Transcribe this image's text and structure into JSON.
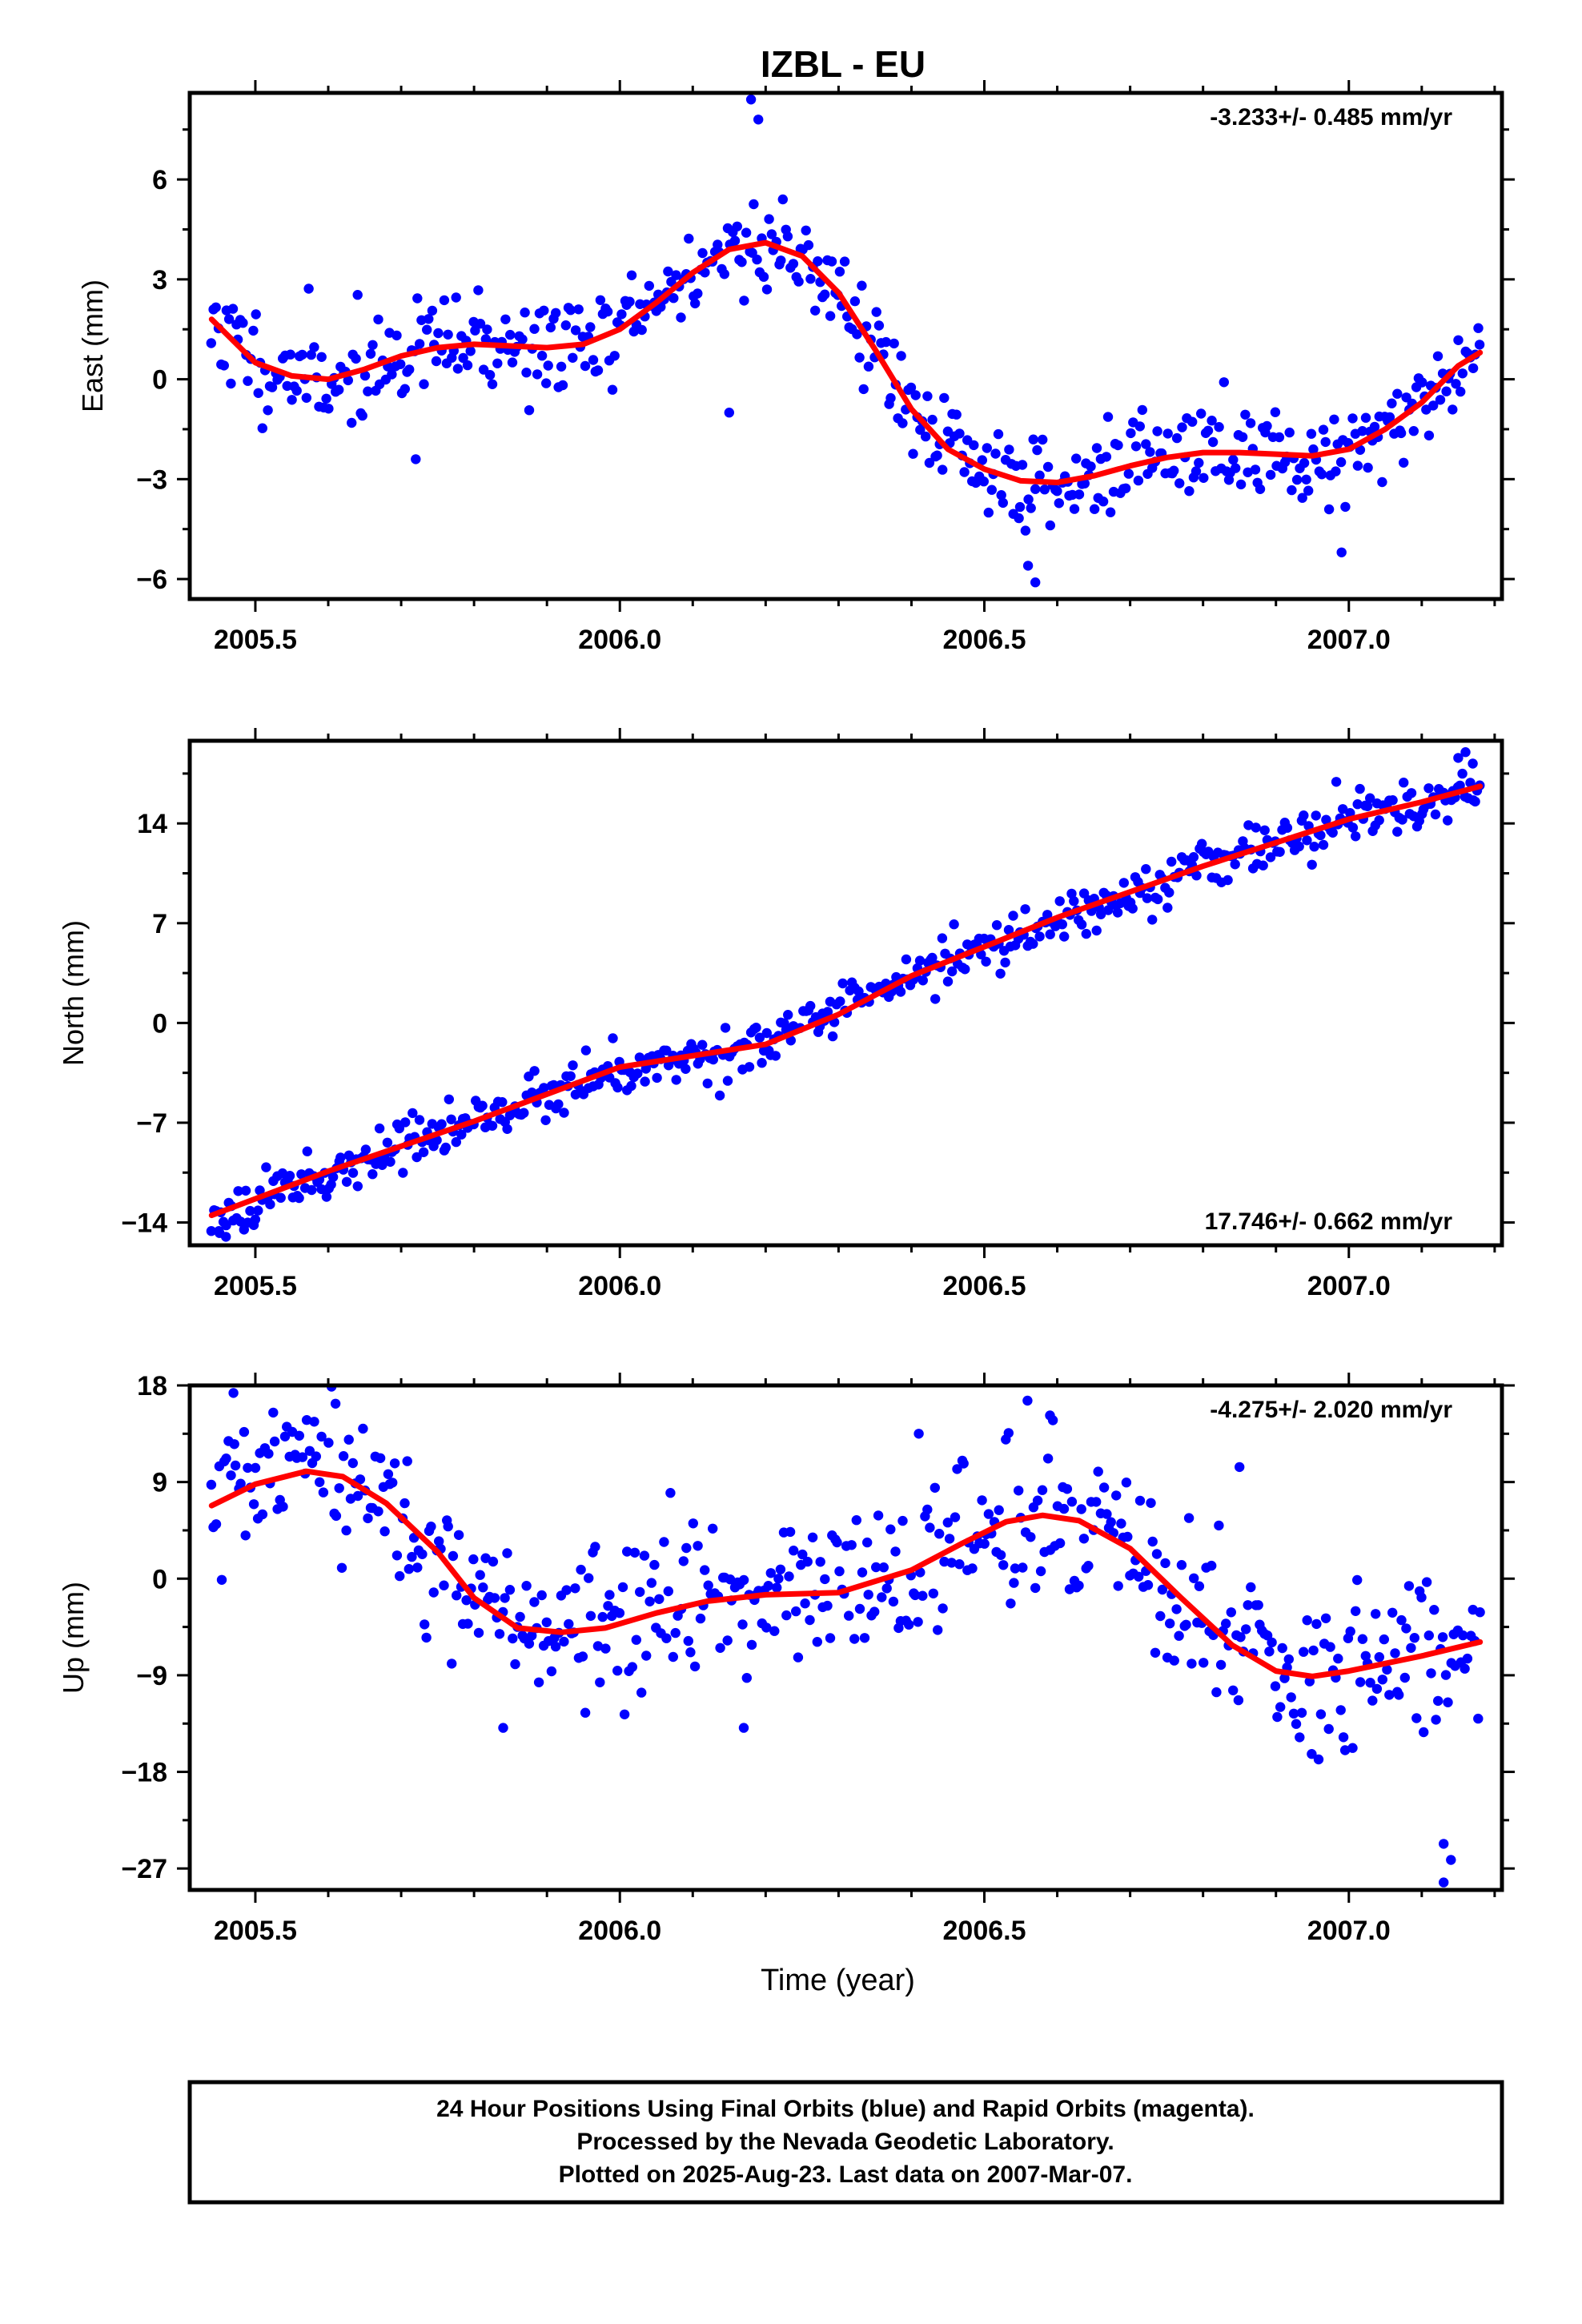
{
  "title": "IZBL - EU",
  "footer": {
    "line1": "24 Hour Positions Using Final Orbits (blue) and Rapid Orbits (magenta).",
    "line2": "Processed by the Nevada Geodetic Laboratory.",
    "line3": "Plotted on 2025-Aug-23. Last data on 2007-Mar-07."
  },
  "colors": {
    "points": "#0000ff",
    "fit": "#ff0000",
    "frame": "#000000"
  },
  "chart_data": [
    {
      "type": "scatter",
      "ylabel": "East (mm)",
      "xlabel": "",
      "rate_label": "-3.233+/- 0.485 mm/yr",
      "rate_position": "top-right",
      "xlim": [
        2005.41,
        2007.21
      ],
      "ylim": [
        -6.6,
        8.6
      ],
      "xticks": [
        2005.5,
        2006.0,
        2006.5,
        2007.0
      ],
      "xtick_labels": [
        "2005.5",
        "2006.0",
        "2006.5",
        "2007.0"
      ],
      "yticks": [
        -6,
        -3,
        0,
        3,
        6
      ],
      "ytick_labels": [
        "−6",
        "−3",
        "0",
        "3",
        "6"
      ],
      "trend": {
        "x": [
          2005.44,
          2005.5,
          2005.55,
          2005.6,
          2005.65,
          2005.7,
          2005.75,
          2005.8,
          2005.85,
          2005.9,
          2005.95,
          2006.0,
          2006.05,
          2006.1,
          2006.15,
          2006.2,
          2006.25,
          2006.3,
          2006.35,
          2006.4,
          2006.45,
          2006.5,
          2006.55,
          2006.6,
          2006.65,
          2006.7,
          2006.75,
          2006.8,
          2006.85,
          2006.9,
          2006.95,
          2007.0,
          2007.05,
          2007.1,
          2007.15,
          2007.18
        ],
        "y": [
          1.8,
          0.5,
          0.1,
          0.0,
          0.3,
          0.7,
          0.95,
          1.05,
          1.0,
          0.95,
          1.05,
          1.5,
          2.3,
          3.2,
          3.9,
          4.1,
          3.7,
          2.6,
          0.9,
          -0.9,
          -2.1,
          -2.7,
          -3.05,
          -3.1,
          -2.9,
          -2.6,
          -2.35,
          -2.2,
          -2.2,
          -2.25,
          -2.3,
          -2.1,
          -1.5,
          -0.7,
          0.4,
          0.8
        ]
      },
      "points_model": {
        "n": 520,
        "x_start": 2005.44,
        "x_end": 2007.18,
        "seed": 11,
        "scatter_sigma": 0.75,
        "outliers": [
          [
            2006.18,
            8.4
          ],
          [
            2006.19,
            7.8
          ],
          [
            2006.15,
            -1.0
          ],
          [
            2006.57,
            -6.1
          ],
          [
            2006.56,
            -5.6
          ],
          [
            2006.99,
            -5.2
          ],
          [
            2005.72,
            -2.4
          ]
        ]
      }
    },
    {
      "type": "scatter",
      "ylabel": "North (mm)",
      "xlabel": "",
      "rate_label": "17.746+/- 0.662 mm/yr",
      "rate_position": "bottom-right",
      "xlim": [
        2005.41,
        2007.21
      ],
      "ylim": [
        -15.6,
        19.8
      ],
      "xticks": [
        2005.5,
        2006.0,
        2006.5,
        2007.0
      ],
      "xtick_labels": [
        "2005.5",
        "2006.0",
        "2006.5",
        "2007.0"
      ],
      "yticks": [
        -14,
        -7,
        0,
        7,
        14
      ],
      "ytick_labels": [
        "−14",
        "−7",
        "0",
        "7",
        "14"
      ],
      "trend": {
        "x": [
          2005.44,
          2005.6,
          2005.8,
          2006.0,
          2006.2,
          2006.3,
          2006.4,
          2006.6,
          2006.8,
          2007.0,
          2007.1,
          2007.18
        ],
        "y": [
          -13.5,
          -10.4,
          -6.9,
          -3.1,
          -1.5,
          0.6,
          3.3,
          7.4,
          11.0,
          14.3,
          15.5,
          16.6
        ]
      },
      "points_model": {
        "n": 520,
        "x_start": 2005.44,
        "x_end": 2007.18,
        "seed": 23,
        "scatter_sigma": 0.85,
        "outliers": [
          [
            2007.15,
            18.6
          ],
          [
            2007.16,
            19.0
          ],
          [
            2007.17,
            18.2
          ],
          [
            2005.45,
            -14.6
          ],
          [
            2005.46,
            -14.2
          ]
        ]
      }
    },
    {
      "type": "scatter",
      "ylabel": "Up (mm)",
      "xlabel": "Time (year)",
      "rate_label": "-4.275+/- 2.020 mm/yr",
      "rate_position": "top-right",
      "xlim": [
        2005.41,
        2007.21
      ],
      "ylim": [
        -29,
        18
      ],
      "xticks": [
        2005.5,
        2006.0,
        2006.5,
        2007.0
      ],
      "xtick_labels": [
        "2005.5",
        "2006.0",
        "2006.5",
        "2007.0"
      ],
      "yticks": [
        -27,
        -18,
        -9,
        0,
        9,
        18
      ],
      "ytick_labels": [
        "−27",
        "−18",
        "−9",
        "0",
        "9",
        "18"
      ],
      "trend": {
        "x": [
          2005.44,
          2005.5,
          2005.57,
          2005.62,
          2005.68,
          2005.75,
          2005.8,
          2005.86,
          2005.92,
          2005.98,
          2006.05,
          2006.12,
          2006.2,
          2006.3,
          2006.4,
          2006.47,
          2006.53,
          2006.58,
          2006.63,
          2006.7,
          2006.77,
          2006.84,
          2006.9,
          2006.95,
          2007.0,
          2007.1,
          2007.18
        ],
        "y": [
          6.8,
          8.8,
          10.0,
          9.5,
          7.0,
          2.5,
          -1.8,
          -4.6,
          -5.0,
          -4.6,
          -3.2,
          -2.1,
          -1.5,
          -1.3,
          0.8,
          3.3,
          5.3,
          5.9,
          5.4,
          2.8,
          -1.8,
          -6.2,
          -8.6,
          -9.1,
          -8.6,
          -7.2,
          -5.9
        ]
      },
      "points_model": {
        "n": 520,
        "x_start": 2005.44,
        "x_end": 2007.18,
        "seed": 37,
        "scatter_sigma": 3.6,
        "outliers": [
          [
            2005.47,
            17.3
          ],
          [
            2005.61,
            16.3
          ],
          [
            2005.84,
            -13.9
          ],
          [
            2006.17,
            -13.9
          ],
          [
            2006.59,
            15.2
          ],
          [
            2007.13,
            -28.3
          ],
          [
            2007.14,
            -26.2
          ],
          [
            2007.13,
            -24.7
          ],
          [
            2006.85,
            10.4
          ],
          [
            2006.41,
            13.5
          ]
        ]
      }
    }
  ]
}
